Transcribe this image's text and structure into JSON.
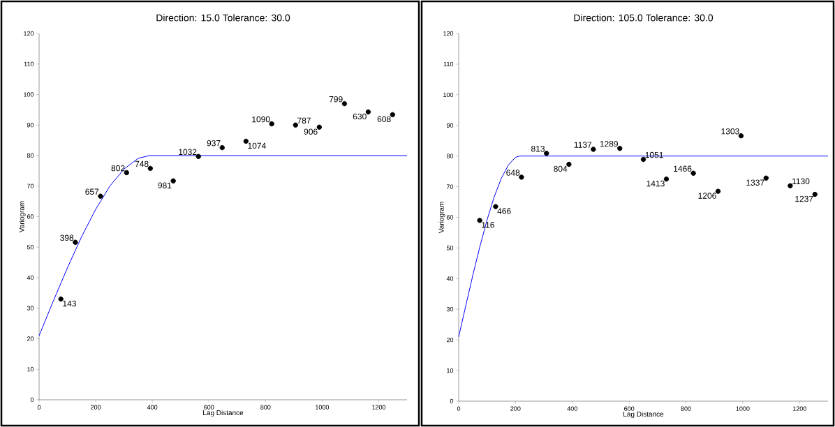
{
  "chart_data": [
    {
      "type": "scatter",
      "title": "Direction: 15.0   Tolerance: 30.0",
      "xlabel": "Lag Distance",
      "ylabel": "Variogram",
      "xlim": [
        0,
        1300
      ],
      "ylim": [
        0,
        120
      ],
      "xticks": [
        0,
        200,
        400,
        600,
        800,
        1000,
        1200
      ],
      "yticks": [
        0,
        10,
        20,
        30,
        40,
        50,
        60,
        70,
        80,
        90,
        100,
        110,
        120
      ],
      "series": [
        {
          "type": "scatter",
          "marker": "circle",
          "color": "#000000",
          "x": [
            77,
            128,
            217,
            309,
            393,
            474,
            563,
            647,
            731,
            822,
            906,
            990,
            1079,
            1163,
            1249
          ],
          "values": [
            33.0,
            51.6,
            66.7,
            74.4,
            75.8,
            71.7,
            79.7,
            82.6,
            84.7,
            90.4,
            90.0,
            89.3,
            97.0,
            94.3,
            93.4
          ]
        },
        {
          "type": "line",
          "marker": "none",
          "color": "#0000ff",
          "x": [
            0,
            50,
            100,
            150,
            200,
            250,
            300,
            350,
            390,
            1300
          ],
          "values": [
            21,
            32.3,
            43.2,
            53.4,
            62.4,
            70.0,
            75.6,
            79.1,
            80,
            80
          ]
        }
      ],
      "annotations": [
        {
          "text": "143",
          "x": 77,
          "y": 33.0
        },
        {
          "text": "398",
          "x": 128,
          "y": 51.6
        },
        {
          "text": "657",
          "x": 217,
          "y": 66.7
        },
        {
          "text": "802",
          "x": 309,
          "y": 74.4
        },
        {
          "text": "748",
          "x": 393,
          "y": 75.8
        },
        {
          "text": "981",
          "x": 474,
          "y": 71.7
        },
        {
          "text": "1032",
          "x": 563,
          "y": 79.7
        },
        {
          "text": "937",
          "x": 647,
          "y": 82.6
        },
        {
          "text": "1074",
          "x": 731,
          "y": 84.7
        },
        {
          "text": "1090",
          "x": 822,
          "y": 90.4
        },
        {
          "text": "787",
          "x": 906,
          "y": 90.0
        },
        {
          "text": "906",
          "x": 990,
          "y": 89.3
        },
        {
          "text": "799",
          "x": 1079,
          "y": 97.0
        },
        {
          "text": "630",
          "x": 1163,
          "y": 94.3
        },
        {
          "text": "608",
          "x": 1249,
          "y": 93.4
        }
      ]
    },
    {
      "type": "scatter",
      "title": "Direction: 105.0   Tolerance: 30.0",
      "xlabel": "Lag Distance",
      "ylabel": "Variogram",
      "xlim": [
        0,
        1300
      ],
      "ylim": [
        0,
        120
      ],
      "xticks": [
        0,
        200,
        400,
        600,
        800,
        1000,
        1200
      ],
      "yticks": [
        0,
        10,
        20,
        30,
        40,
        50,
        60,
        70,
        80,
        90,
        100,
        110,
        120
      ],
      "series": [
        {
          "type": "scatter",
          "marker": "circle",
          "color": "#000000",
          "x": [
            74,
            130,
            221,
            309,
            388,
            474,
            567,
            650,
            731,
            826,
            913,
            994,
            1082,
            1167,
            1254
          ],
          "values": [
            59.0,
            63.5,
            73.1,
            80.9,
            77.3,
            82.2,
            82.5,
            78.9,
            72.5,
            74.4,
            68.5,
            86.6,
            72.8,
            70.3,
            67.5
          ]
        },
        {
          "type": "line",
          "marker": "none",
          "color": "#0000ff",
          "x": [
            0,
            25,
            50,
            75,
            100,
            125,
            150,
            175,
            200,
            215,
            1300
          ],
          "values": [
            21,
            31.2,
            41.2,
            50.6,
            59.2,
            66.7,
            72.7,
            77.1,
            79.6,
            80,
            80
          ]
        }
      ],
      "annotations": [
        {
          "text": "116",
          "x": 74,
          "y": 59.0
        },
        {
          "text": "466",
          "x": 130,
          "y": 63.5
        },
        {
          "text": "648",
          "x": 221,
          "y": 73.1
        },
        {
          "text": "813",
          "x": 309,
          "y": 80.9
        },
        {
          "text": "804",
          "x": 388,
          "y": 77.3
        },
        {
          "text": "1137",
          "x": 474,
          "y": 82.2
        },
        {
          "text": "1289",
          "x": 567,
          "y": 82.5
        },
        {
          "text": "1051",
          "x": 650,
          "y": 78.9
        },
        {
          "text": "1413",
          "x": 731,
          "y": 72.5
        },
        {
          "text": "1466",
          "x": 826,
          "y": 74.4
        },
        {
          "text": "1206",
          "x": 913,
          "y": 68.5
        },
        {
          "text": "1303",
          "x": 994,
          "y": 86.6
        },
        {
          "text": "1337",
          "x": 1082,
          "y": 72.8
        },
        {
          "text": "1130",
          "x": 1167,
          "y": 70.3
        },
        {
          "text": "1237",
          "x": 1254,
          "y": 67.5
        }
      ]
    }
  ]
}
